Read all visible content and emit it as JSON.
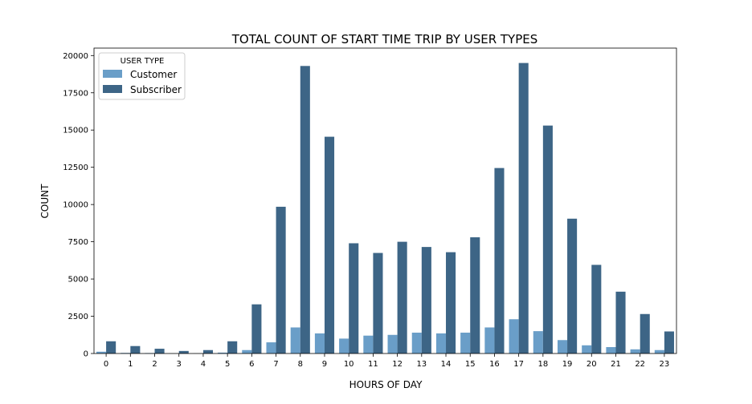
{
  "chart_data": {
    "type": "bar",
    "title": "TOTAL COUNT OF START TIME TRIP BY USER TYPES",
    "xlabel": "HOURS OF DAY",
    "ylabel": "COUNT",
    "categories": [
      "0",
      "1",
      "2",
      "3",
      "4",
      "5",
      "6",
      "7",
      "8",
      "9",
      "10",
      "11",
      "12",
      "13",
      "14",
      "15",
      "16",
      "17",
      "18",
      "19",
      "20",
      "21",
      "22",
      "23"
    ],
    "ylim": [
      0,
      20500
    ],
    "yticks": [
      0,
      2500,
      5000,
      7500,
      10000,
      12500,
      15000,
      17500,
      20000
    ],
    "legend": {
      "title": "USER TYPE",
      "position": "top-left"
    },
    "series": [
      {
        "name": "Customer",
        "color": "#6a9ec8",
        "values": [
          120,
          40,
          30,
          10,
          10,
          60,
          230,
          750,
          1750,
          1350,
          1000,
          1200,
          1250,
          1400,
          1350,
          1400,
          1750,
          2300,
          1500,
          900,
          550,
          430,
          280,
          230
        ]
      },
      {
        "name": "Subscriber",
        "color": "#3d6586",
        "values": [
          820,
          500,
          320,
          170,
          230,
          820,
          3300,
          9850,
          19300,
          14550,
          7400,
          6750,
          7500,
          7150,
          6800,
          7800,
          12450,
          19500,
          15300,
          9050,
          5950,
          4150,
          2650,
          1480
        ]
      }
    ]
  }
}
